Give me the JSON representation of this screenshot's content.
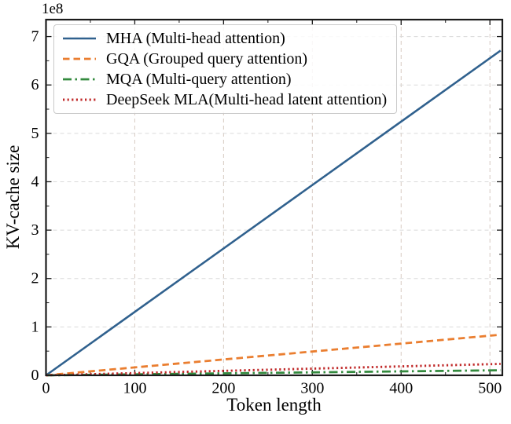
{
  "chart_data": {
    "type": "line",
    "title": "",
    "xlabel": "Token length",
    "ylabel": "KV-cache size",
    "y_offset_label": "1e8",
    "xlim": [
      0,
      514
    ],
    "ylim": [
      0,
      7.35
    ],
    "y_tick_scale": 100000000,
    "x_ticks": [
      0,
      100,
      200,
      300,
      400,
      500
    ],
    "x_minor_ticks": [
      50,
      150,
      250,
      350,
      450
    ],
    "y_ticks": [
      0,
      1,
      2,
      3,
      4,
      5,
      6,
      7
    ],
    "y_minor_ticks": [
      0.5,
      1.5,
      2.5,
      3.5,
      4.5,
      5.5,
      6.5
    ],
    "grid": true,
    "legend_position": "upper-left",
    "series": [
      {
        "key": "mha",
        "name": "MHA (Multi-head attention)",
        "color": "#30618e",
        "linestyle": "solid",
        "x": [
          0,
          512
        ],
        "y": [
          0,
          671088640
        ]
      },
      {
        "key": "gqa",
        "name": "GQA (Grouped query attention)",
        "color": "#ea7e30",
        "linestyle": "dashed",
        "x": [
          0,
          512
        ],
        "y": [
          0,
          83886080
        ]
      },
      {
        "key": "mqa",
        "name": "MQA (Multi-query attention)",
        "color": "#338a3e",
        "linestyle": "dashdot",
        "x": [
          0,
          512
        ],
        "y": [
          0,
          10485760
        ]
      },
      {
        "key": "mla",
        "name": "DeepSeek MLA(Multi-head latent attention)",
        "color": "#c02a2a",
        "linestyle": "dotted",
        "x": [
          0,
          512
        ],
        "y": [
          0,
          23592960
        ]
      }
    ]
  }
}
